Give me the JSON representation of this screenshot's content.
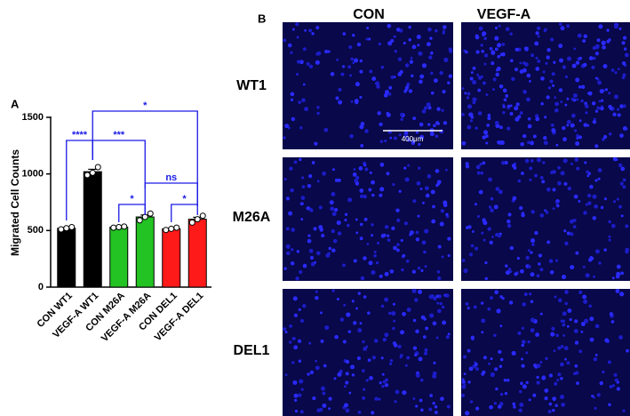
{
  "chart_data": {
    "type": "bar",
    "panel_label": "A",
    "ylabel": "Migrated Cell Counts",
    "categories": [
      "CON WT1",
      "VEGF-A WT1",
      "CON M26A",
      "VEGF-A M26A",
      "CON DEL1",
      "VEGF-A DEL1"
    ],
    "values": [
      520,
      1020,
      530,
      620,
      515,
      600
    ],
    "errors": [
      6,
      21,
      3,
      17,
      6,
      17
    ],
    "replicates": [
      [
        510,
        520,
        530
      ],
      [
        990,
        1010,
        1060
      ],
      [
        525,
        530,
        535
      ],
      [
        590,
        620,
        650
      ],
      [
        505,
        515,
        525
      ],
      [
        570,
        600,
        630
      ]
    ],
    "colors": [
      "#000000",
      "#000000",
      "#22c322",
      "#22c322",
      "#ff1a1a",
      "#ff1a1a"
    ],
    "ylim": [
      0,
      1500
    ],
    "yticks": [
      0,
      500,
      1000,
      1500
    ],
    "annotations": [
      "****",
      "***",
      "*",
      "*",
      "ns",
      "*"
    ]
  },
  "images": {
    "panel_label": "B",
    "columns": [
      "CON",
      "VEGF-A"
    ],
    "rows": [
      "WT1",
      "M26A",
      "DEL1"
    ],
    "scale_bar": "400μm"
  }
}
